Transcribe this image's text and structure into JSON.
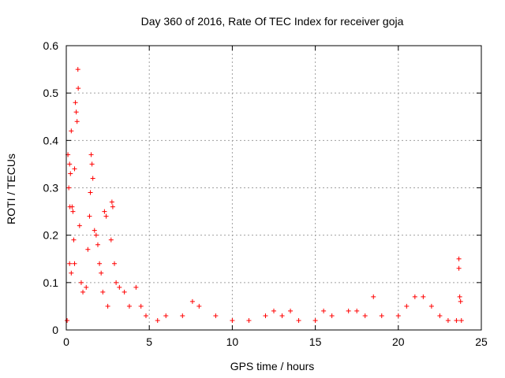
{
  "chart_data": {
    "type": "scatter",
    "title": "Day 360 of 2016, Rate Of TEC Index for receiver goja",
    "xlabel": "GPS time / hours",
    "ylabel": "ROTI / TECUs",
    "xlim": [
      0,
      25
    ],
    "ylim": [
      0,
      0.6
    ],
    "xticks": [
      "0",
      "5",
      "10",
      "15",
      "20",
      "25"
    ],
    "yticks": [
      "0",
      "0.1",
      "0.2",
      "0.3",
      "0.4",
      "0.5",
      "0.6"
    ],
    "grid": true,
    "marker": "+",
    "marker_color": "#ff0000",
    "series": [
      {
        "name": "goja",
        "points": [
          [
            0.05,
            0.02
          ],
          [
            0.1,
            0.37
          ],
          [
            0.15,
            0.3
          ],
          [
            0.2,
            0.35
          ],
          [
            0.22,
            0.26
          ],
          [
            0.25,
            0.33
          ],
          [
            0.3,
            0.42
          ],
          [
            0.35,
            0.26
          ],
          [
            0.4,
            0.25
          ],
          [
            0.45,
            0.19
          ],
          [
            0.5,
            0.34
          ],
          [
            0.55,
            0.48
          ],
          [
            0.6,
            0.46
          ],
          [
            0.65,
            0.44
          ],
          [
            0.7,
            0.55
          ],
          [
            0.72,
            0.51
          ],
          [
            0.8,
            0.22
          ],
          [
            0.2,
            0.14
          ],
          [
            0.3,
            0.12
          ],
          [
            0.5,
            0.14
          ],
          [
            0.9,
            0.1
          ],
          [
            1.0,
            0.08
          ],
          [
            1.2,
            0.09
          ],
          [
            1.3,
            0.17
          ],
          [
            1.4,
            0.24
          ],
          [
            1.45,
            0.29
          ],
          [
            1.5,
            0.37
          ],
          [
            1.55,
            0.35
          ],
          [
            1.6,
            0.32
          ],
          [
            1.7,
            0.21
          ],
          [
            1.8,
            0.2
          ],
          [
            1.9,
            0.18
          ],
          [
            2.0,
            0.14
          ],
          [
            2.1,
            0.12
          ],
          [
            2.2,
            0.08
          ],
          [
            2.3,
            0.25
          ],
          [
            2.4,
            0.24
          ],
          [
            2.5,
            0.05
          ],
          [
            2.7,
            0.19
          ],
          [
            2.75,
            0.27
          ],
          [
            2.8,
            0.26
          ],
          [
            2.9,
            0.14
          ],
          [
            3.0,
            0.1
          ],
          [
            3.2,
            0.09
          ],
          [
            3.5,
            0.08
          ],
          [
            3.8,
            0.05
          ],
          [
            4.2,
            0.09
          ],
          [
            4.5,
            0.05
          ],
          [
            4.8,
            0.03
          ],
          [
            5.5,
            0.02
          ],
          [
            6.0,
            0.03
          ],
          [
            7.0,
            0.03
          ],
          [
            7.6,
            0.06
          ],
          [
            8.0,
            0.05
          ],
          [
            9.0,
            0.03
          ],
          [
            10.0,
            0.02
          ],
          [
            11.0,
            0.02
          ],
          [
            12.0,
            0.03
          ],
          [
            12.5,
            0.04
          ],
          [
            13.0,
            0.03
          ],
          [
            13.5,
            0.04
          ],
          [
            14.0,
            0.02
          ],
          [
            15.0,
            0.02
          ],
          [
            15.5,
            0.04
          ],
          [
            16.0,
            0.03
          ],
          [
            17.0,
            0.04
          ],
          [
            17.5,
            0.04
          ],
          [
            18.0,
            0.03
          ],
          [
            18.5,
            0.07
          ],
          [
            19.0,
            0.03
          ],
          [
            20.0,
            0.03
          ],
          [
            20.5,
            0.05
          ],
          [
            21.0,
            0.07
          ],
          [
            21.5,
            0.07
          ],
          [
            22.0,
            0.05
          ],
          [
            22.5,
            0.03
          ],
          [
            23.0,
            0.02
          ],
          [
            23.5,
            0.02
          ],
          [
            23.65,
            0.15
          ],
          [
            23.65,
            0.13
          ],
          [
            23.7,
            0.07
          ],
          [
            23.75,
            0.06
          ],
          [
            23.8,
            0.02
          ]
        ]
      }
    ]
  }
}
